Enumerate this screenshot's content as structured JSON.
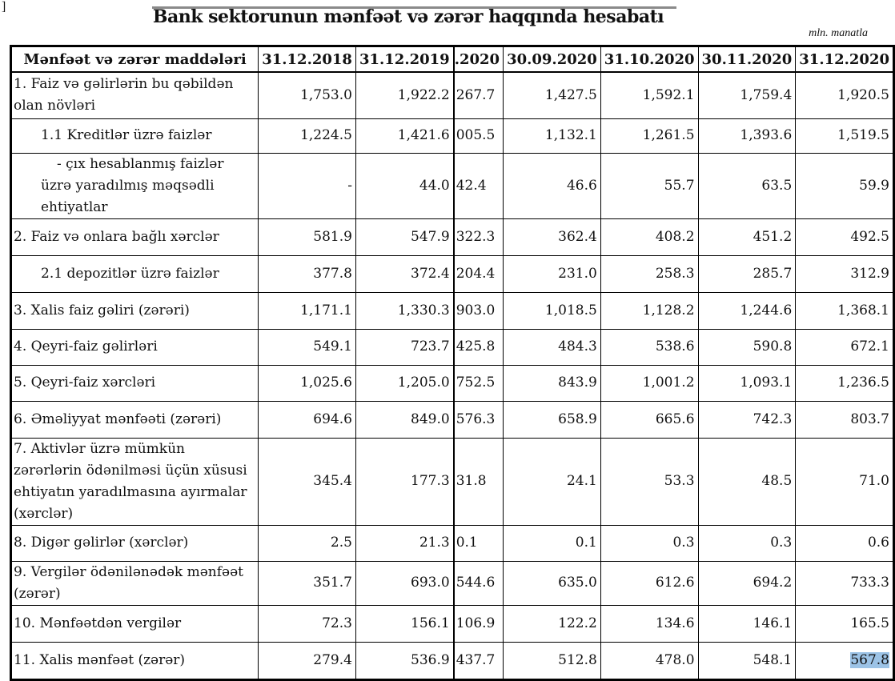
{
  "title": "Bank sektorunun mənfəət və zərər haqqında hesabatı",
  "unit": "mln. manatla",
  "table": {
    "headers": [
      "Mənfəət və zərər maddələri",
      "31.12.2018",
      "31.12.2019",
      ".2020",
      "30.09.2020",
      "31.10.2020",
      "30.11.2020",
      "31.12.2020"
    ],
    "rows": [
      {
        "label": "1. Faiz və gəlirlərin bu qəbildən olan növləri",
        "values": [
          "1,753.0",
          "1,922.2",
          "267.7",
          "1,427.5",
          "1,592.1",
          "1,759.4",
          "1,920.5"
        ]
      },
      {
        "label": "1.1 Kreditlər üzrə faizlər",
        "values": [
          "1,224.5",
          "1,421.6",
          "005.5",
          "1,132.1",
          "1,261.5",
          "1,393.6",
          "1,519.5"
        ]
      },
      {
        "label": "- çıx hesablanmış faizlər üzrə yaradılmış məqsədli ehtiyatlar",
        "values": [
          "-",
          "44.0",
          "42.4",
          "46.6",
          "55.7",
          "63.5",
          "59.9"
        ]
      },
      {
        "label": "2. Faiz və onlara bağlı xərclər",
        "values": [
          "581.9",
          "547.9",
          "322.3",
          "362.4",
          "408.2",
          "451.2",
          "492.5"
        ]
      },
      {
        "label": "2.1 depozitlər üzrə faizlər",
        "values": [
          "377.8",
          "372.4",
          "204.4",
          "231.0",
          "258.3",
          "285.7",
          "312.9"
        ]
      },
      {
        "label": "3. Xalis faiz gəliri (zərəri)",
        "values": [
          "1,171.1",
          "1,330.3",
          "903.0",
          "1,018.5",
          "1,128.2",
          "1,244.6",
          "1,368.1"
        ]
      },
      {
        "label": "4. Qeyri-faiz gəlirləri",
        "values": [
          "549.1",
          "723.7",
          "425.8",
          "484.3",
          "538.6",
          "590.8",
          "672.1"
        ]
      },
      {
        "label": "5. Qeyri-faiz xərcləri",
        "values": [
          "1,025.6",
          "1,205.0",
          "752.5",
          "843.9",
          "1,001.2",
          "1,093.1",
          "1,236.5"
        ]
      },
      {
        "label": "6. Əməliyyat mənfəəti (zərəri)",
        "values": [
          "694.6",
          "849.0",
          "576.3",
          "658.9",
          "665.6",
          "742.3",
          "803.7"
        ]
      },
      {
        "label": "7. Aktivlər üzrə mümkün zərərlərin ödənilməsi üçün xüsusi ehtiyatın yaradılmasına ayırmalar (xərclər)",
        "values": [
          "345.4",
          "177.3",
          "31.8",
          "24.1",
          "53.3",
          "48.5",
          "71.0"
        ]
      },
      {
        "label": "8. Digər gəlirlər (xərclər)",
        "values": [
          "2.5",
          "21.3",
          "0.1",
          "0.1",
          "0.3",
          "0.3",
          "0.6"
        ]
      },
      {
        "label": "9. Vergilər ödənilənədək mənfəət (zərər)",
        "values": [
          "351.7",
          "693.0",
          "544.6",
          "635.0",
          "612.6",
          "694.2",
          "733.3"
        ]
      },
      {
        "label": "10. Mənfəətdən vergilər",
        "values": [
          "72.3",
          "156.1",
          "106.9",
          "122.2",
          "134.6",
          "146.1",
          "165.5"
        ]
      },
      {
        "label": "11. Xalis mənfəət (zərər)",
        "values": [
          "279.4",
          "536.9",
          "437.7",
          "512.8",
          "478.0",
          "548.1",
          "567.8"
        ]
      }
    ],
    "selected_cell": "567.8",
    "selection_color": "#9cc3e6"
  }
}
